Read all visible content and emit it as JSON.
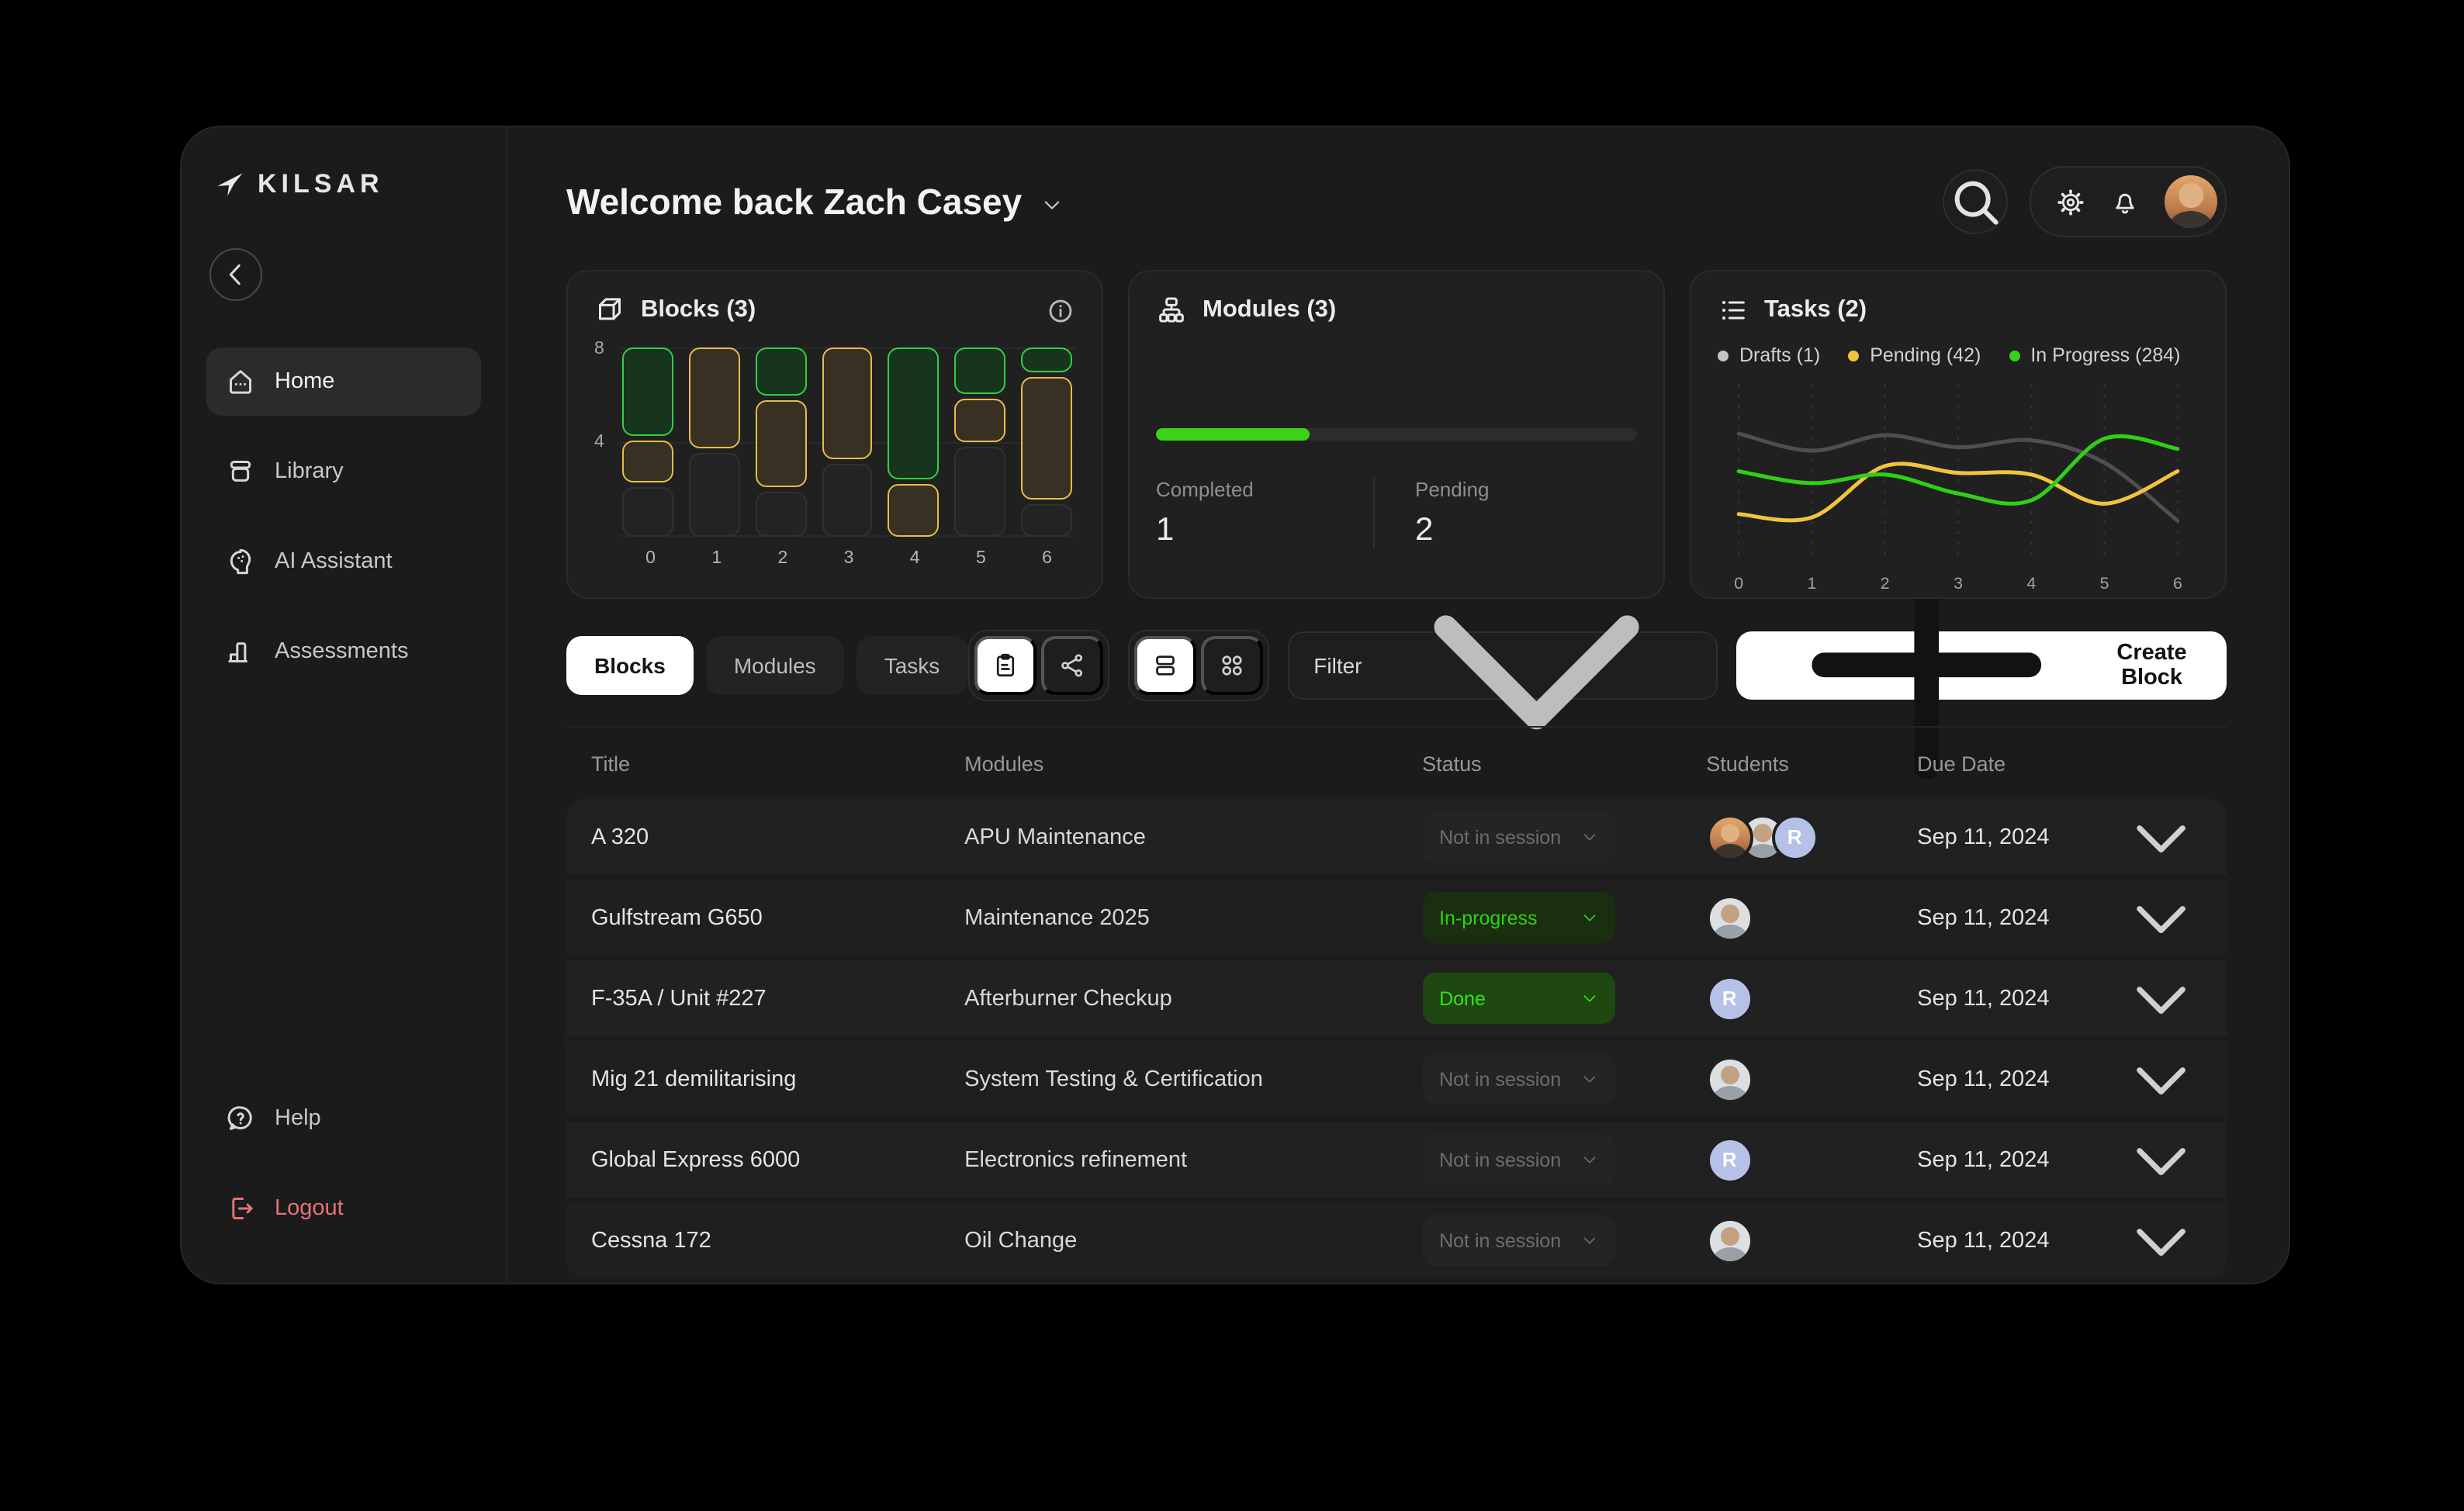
{
  "brand": {
    "name": "KILSAR",
    "logo_icon": "plane-icon"
  },
  "header": {
    "title": "Welcome back Zach Casey"
  },
  "sidebar": {
    "items": [
      {
        "label": "Home",
        "icon": "home-icon",
        "active": true
      },
      {
        "label": "Library",
        "icon": "library-icon",
        "active": false
      },
      {
        "label": "AI Assistant",
        "icon": "ai-assistant-icon",
        "active": false
      },
      {
        "label": "Assessments",
        "icon": "assessments-icon",
        "active": false
      }
    ],
    "footer_items": [
      {
        "label": "Help",
        "icon": "help-icon",
        "kind": "help"
      },
      {
        "label": "Logout",
        "icon": "logout-icon",
        "kind": "logout"
      }
    ]
  },
  "cards": {
    "blocks": {
      "title": "Blocks (3)",
      "icon": "cube-icon",
      "yticks": [
        "8",
        "4"
      ]
    },
    "modules": {
      "title": "Modules (3)",
      "icon": "modules-icon",
      "progress_pct": 32,
      "completed_label": "Completed",
      "completed_value": "1",
      "pending_label": "Pending",
      "pending_value": "2"
    },
    "tasks": {
      "title": "Tasks (2)",
      "icon": "tasks-icon",
      "legend": [
        {
          "label": "Drafts (1)",
          "dot": "#c3c3c3"
        },
        {
          "label": "Pending (42)",
          "dot": "#f1c33f"
        },
        {
          "label": "In Progress (284)",
          "dot": "#35d01b"
        }
      ]
    }
  },
  "chart_data": [
    {
      "id": "blocks-stack",
      "type": "bar",
      "title": "Blocks (3)",
      "stacked": true,
      "categories": [
        "0",
        "1",
        "2",
        "3",
        "4",
        "5",
        "6"
      ],
      "ylim": [
        0,
        8
      ],
      "yticks": [
        8,
        4
      ],
      "legend_note": "green=active blocks, yellow=pending blocks, empty=unfilled slots; units out of 8",
      "columns": [
        [
          {
            "kind": "green",
            "units": 4.0
          },
          {
            "kind": "yellow",
            "units": 1.8
          },
          {
            "kind": "empty",
            "units": 2.2
          }
        ],
        [
          {
            "kind": "yellow",
            "units": 4.4
          },
          {
            "kind": "empty",
            "units": 3.6
          }
        ],
        [
          {
            "kind": "green",
            "units": 2.1
          },
          {
            "kind": "yellow",
            "units": 3.9
          },
          {
            "kind": "empty",
            "units": 2.0
          }
        ],
        [
          {
            "kind": "yellow",
            "units": 4.9
          },
          {
            "kind": "empty",
            "units": 3.1
          }
        ],
        [
          {
            "kind": "green",
            "units": 5.8
          },
          {
            "kind": "yellow",
            "units": 2.2
          }
        ],
        [
          {
            "kind": "green",
            "units": 2.0
          },
          {
            "kind": "yellow",
            "units": 1.9
          },
          {
            "kind": "empty",
            "units": 4.1
          }
        ],
        [
          {
            "kind": "green",
            "units": 1.0
          },
          {
            "kind": "yellow",
            "units": 5.6
          },
          {
            "kind": "empty",
            "units": 1.4
          }
        ]
      ],
      "segment_colors": {
        "green": "#33cf45",
        "yellow": "#e7bd4a",
        "empty": "#313133"
      }
    },
    {
      "id": "tasks-lines",
      "type": "line",
      "title": "Tasks (2)",
      "x": [
        0,
        1,
        2,
        3,
        4,
        5,
        6
      ],
      "ylim": [
        0,
        10
      ],
      "grid": "vertical-dashed",
      "legend_position": "top",
      "series": [
        {
          "name": "Drafts (1)",
          "color": "#4f4f52",
          "values": [
            7.3,
            6.3,
            7.2,
            6.5,
            6.9,
            5.6,
            2.2
          ]
        },
        {
          "name": "Pending (42)",
          "color": "#f1c33f",
          "values": [
            2.6,
            2.4,
            5.4,
            5.0,
            4.9,
            3.2,
            5.1
          ]
        },
        {
          "name": "In Progress (284)",
          "color": "#2fd014",
          "values": [
            5.1,
            4.4,
            4.9,
            3.8,
            3.4,
            7.0,
            6.4
          ]
        }
      ]
    }
  ],
  "toolbar": {
    "tabs": [
      {
        "label": "Blocks",
        "active": true
      },
      {
        "label": "Modules",
        "active": false
      },
      {
        "label": "Tasks",
        "active": false
      }
    ],
    "icon_groups": [
      {
        "items": [
          {
            "icon": "clipboard-icon",
            "active": true
          },
          {
            "icon": "share-nodes-icon",
            "active": false
          }
        ]
      },
      {
        "items": [
          {
            "icon": "rows-view-icon",
            "active": true
          },
          {
            "icon": "grid-view-icon",
            "active": false
          }
        ]
      }
    ],
    "filter_label": "Filter",
    "create_label": "Create Block"
  },
  "table": {
    "columns": [
      "Title",
      "Modules",
      "Status",
      "Students",
      "Due Date"
    ],
    "rows": [
      {
        "title": "A 320",
        "module": "APU Maintenance",
        "status": "Not in session",
        "status_type": "muted",
        "students": [
          {
            "type": "photo-warm"
          },
          {
            "type": "photo-gray"
          },
          {
            "type": "initial",
            "label": "R"
          }
        ],
        "due": "Sep 11, 2024"
      },
      {
        "title": "Gulfstream G650",
        "module": "Maintenance 2025",
        "status": "In-progress",
        "status_type": "progress",
        "students": [
          {
            "type": "photo-gray"
          }
        ],
        "due": "Sep 11, 2024"
      },
      {
        "title": "F-35A / Unit #227",
        "module": "Afterburner Checkup",
        "status": "Done",
        "status_type": "done",
        "students": [
          {
            "type": "initial",
            "label": "R"
          }
        ],
        "due": "Sep 11, 2024"
      },
      {
        "title": "Mig 21 demilitarising",
        "module": "System Testing & Certification",
        "status": "Not in session",
        "status_type": "muted",
        "students": [
          {
            "type": "photo-gray"
          }
        ],
        "due": "Sep 11, 2024"
      },
      {
        "title": "Global Express 6000",
        "module": "Electronics refinement",
        "status": "Not in session",
        "status_type": "muted",
        "students": [
          {
            "type": "initial",
            "label": "R"
          }
        ],
        "due": "Sep 11, 2024"
      },
      {
        "title": "Cessna 172",
        "module": "Oil Change",
        "status": "Not in session",
        "status_type": "muted",
        "students": [
          {
            "type": "photo-gray"
          }
        ],
        "due": "Sep 11, 2024"
      }
    ]
  },
  "colors": {
    "accent_green": "#35d01b",
    "accent_yellow": "#f1c33f",
    "drafts_gray": "#4f4f52",
    "logout_red": "#e57373",
    "avatar_lavender": "#b5c1e6",
    "status_done_bg": "#1f4712",
    "status_progress_bg": "#1a2f10"
  }
}
